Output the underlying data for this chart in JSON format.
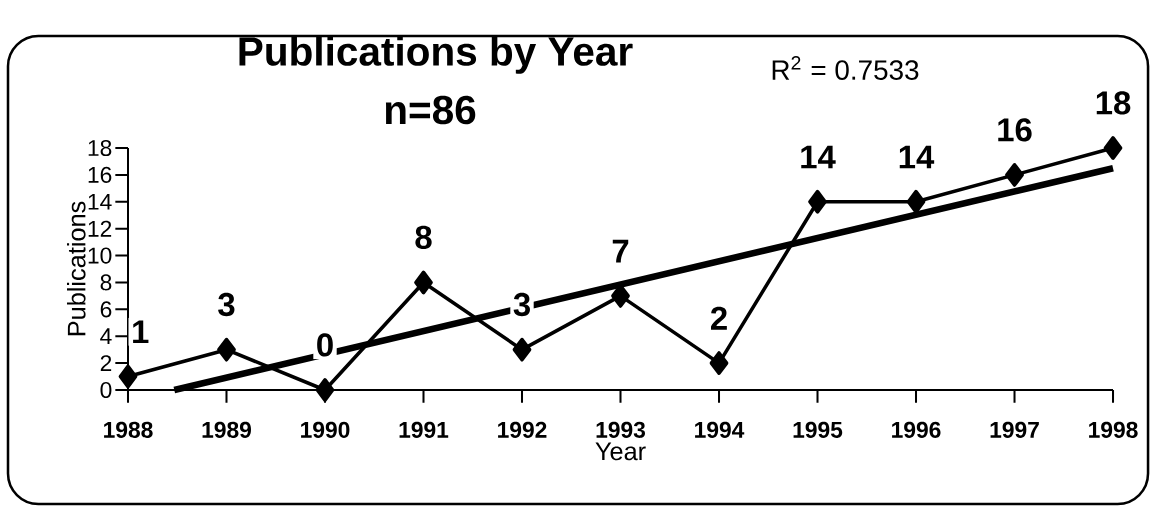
{
  "chart_data": {
    "type": "line",
    "title": "Publications by Year",
    "subtitle": "n=86",
    "xlabel": "Year",
    "ylabel": "Publications",
    "annotations": [
      "R$^{2}$ = 0.7533"
    ],
    "x": [
      1988,
      1989,
      1990,
      1991,
      1992,
      1993,
      1994,
      1995,
      1996,
      1997,
      1998
    ],
    "series": [
      {
        "color": "#000000",
        "marker": "diamond",
        "values": [
          1,
          3,
          0,
          8,
          3,
          7,
          2,
          14,
          14,
          16,
          18
        ],
        "value_labels": [
          "1",
          "3",
          "0",
          "8",
          "3",
          "7",
          "2",
          "14",
          "14",
          "16",
          "18"
        ]
      },
      {
        "type": "line",
        "color": "#000000",
        "marker": "none",
        "x": [
          1988.47,
          1998
        ],
        "values": [
          0,
          16.5
        ]
      }
    ],
    "xlim": [
      1988,
      1998
    ],
    "ylim": [
      0,
      18
    ],
    "xticks": [
      1988,
      1989,
      1990,
      1991,
      1992,
      1993,
      1994,
      1995,
      1996,
      1997,
      1998
    ],
    "yticks": [
      0,
      2,
      4,
      6,
      8,
      10,
      12,
      14,
      16,
      18
    ]
  }
}
